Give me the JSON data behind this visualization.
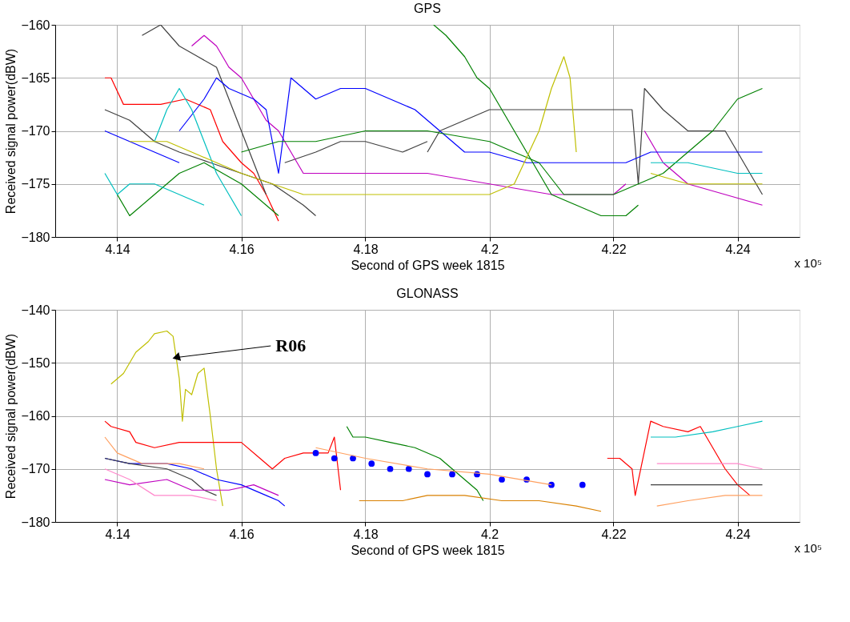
{
  "chart_data": [
    {
      "type": "line",
      "title": "GPS",
      "xlabel": "Second of GPS week 1815",
      "ylabel": "Received signal power(dBW)",
      "xlim": [
        4.13,
        4.25
      ],
      "xticks": [
        4.14,
        4.16,
        4.18,
        4.2,
        4.22,
        4.24
      ],
      "ylim": [
        -180,
        -160
      ],
      "yticks": [
        -180,
        -175,
        -170,
        -165,
        -160
      ],
      "grid": true,
      "annotations": [
        "x 10⁵"
      ],
      "series": [
        {
          "color": "#ff0000",
          "x": [
            4.138,
            4.139,
            4.141,
            4.147,
            4.151,
            4.155,
            4.157,
            4.16,
            4.162,
            4.164,
            4.166
          ],
          "values": [
            -165,
            -165,
            -167.5,
            -167.5,
            -167,
            -168,
            -171,
            -173,
            -174,
            -176,
            -178.5
          ]
        },
        {
          "color": "#404040",
          "x": [
            4.144,
            4.147,
            4.15,
            4.153,
            4.156,
            4.158,
            4.16,
            4.162,
            4.164
          ],
          "values": [
            -161,
            -160,
            -162,
            -163,
            -164,
            -167,
            -170,
            -173,
            -176
          ]
        },
        {
          "color": "#404040",
          "x": [
            4.138,
            4.142,
            4.146,
            4.15,
            4.155,
            4.16,
            4.165,
            4.17,
            4.172
          ],
          "values": [
            -168,
            -169,
            -171,
            -172,
            -173,
            -174,
            -175,
            -177,
            -178
          ]
        },
        {
          "color": "#404040",
          "x": [
            4.167,
            4.172,
            4.176,
            4.18,
            4.186,
            4.19
          ],
          "values": [
            -173,
            -172,
            -171,
            -171,
            -172,
            -171
          ]
        },
        {
          "color": "#404040",
          "x": [
            4.19,
            4.192,
            4.196,
            4.2,
            4.204,
            4.21,
            4.215,
            4.223,
            4.224,
            4.225,
            4.228,
            4.232,
            4.238,
            4.24,
            4.244
          ],
          "values": [
            -172,
            -170,
            -169,
            -168,
            -168,
            -168,
            -168,
            -168,
            -175,
            -166,
            -168,
            -170,
            -170,
            -172,
            -176
          ]
        },
        {
          "color": "#bf00bf",
          "x": [
            4.152,
            4.154,
            4.156,
            4.158,
            4.16,
            4.162,
            4.164,
            4.166,
            4.168,
            4.17,
            4.18,
            4.19,
            4.2,
            4.21,
            4.22,
            4.222
          ],
          "values": [
            -162,
            -161,
            -162,
            -164,
            -165,
            -167,
            -169,
            -170,
            -172,
            -174,
            -174,
            -174,
            -175,
            -176,
            -176,
            -175
          ]
        },
        {
          "color": "#bf00bf",
          "x": [
            4.225,
            4.228,
            4.232,
            4.238,
            4.244
          ],
          "values": [
            -170,
            -173,
            -175,
            -176,
            -177
          ]
        },
        {
          "color": "#0000ff",
          "x": [
            4.15,
            4.154,
            4.156,
            4.158,
            4.162,
            4.164,
            4.166,
            4.168,
            4.17,
            4.172,
            4.176,
            4.18,
            4.184,
            4.188,
            4.192,
            4.196,
            4.2,
            4.206,
            4.214,
            4.222,
            4.226,
            4.24,
            4.244
          ],
          "values": [
            -170,
            -167,
            -165,
            -166,
            -167,
            -168,
            -174,
            -165,
            -166,
            -167,
            -166,
            -166,
            -167,
            -168,
            -170,
            -172,
            -172,
            -173,
            -173,
            -173,
            -172,
            -172,
            -172
          ]
        },
        {
          "color": "#0000ff",
          "x": [
            4.138,
            4.142,
            4.146,
            4.15
          ],
          "values": [
            -170,
            -171,
            -172,
            -173
          ]
        },
        {
          "color": "#008000",
          "x": [
            4.191,
            4.193,
            4.196,
            4.198,
            4.2,
            4.202,
            4.204,
            4.206,
            4.208,
            4.21,
            4.214,
            4.218,
            4.222,
            4.224
          ],
          "values": [
            -160,
            -161,
            -163,
            -165,
            -166,
            -168,
            -170,
            -172,
            -174,
            -176,
            -177,
            -178,
            -178,
            -177
          ]
        },
        {
          "color": "#008000",
          "x": [
            4.16,
            4.166,
            4.172,
            4.18,
            4.19,
            4.2,
            4.204,
            4.208,
            4.212,
            4.22,
            4.228,
            4.232,
            4.236,
            4.24,
            4.244
          ],
          "values": [
            -172,
            -171,
            -171,
            -170,
            -170,
            -171,
            -172,
            -173,
            -176,
            -176,
            -174,
            -172,
            -170,
            -167,
            -166
          ]
        },
        {
          "color": "#008000",
          "x": [
            4.14,
            4.142,
            4.146,
            4.15,
            4.154,
            4.16,
            4.164,
            4.166
          ],
          "values": [
            -176,
            -178,
            -176,
            -174,
            -173,
            -175,
            -177,
            -178
          ]
        },
        {
          "color": "#00bfbf",
          "x": [
            4.146,
            4.148,
            4.15,
            4.152,
            4.154,
            4.156,
            4.158,
            4.16
          ],
          "values": [
            -171,
            -168,
            -166,
            -168,
            -171,
            -174,
            -176,
            -178
          ]
        },
        {
          "color": "#00bfbf",
          "x": [
            4.138,
            4.14,
            4.142,
            4.146,
            4.15,
            4.154
          ],
          "values": [
            -174,
            -176,
            -175,
            -175,
            -176,
            -177
          ]
        },
        {
          "color": "#00bfbf",
          "x": [
            4.226,
            4.232,
            4.24,
            4.244
          ],
          "values": [
            -173,
            -173,
            -174,
            -174
          ]
        },
        {
          "color": "#bfbf00",
          "x": [
            4.142,
            4.148,
            4.152,
            4.16,
            4.17,
            4.18,
            4.19,
            4.2,
            4.204,
            4.208,
            4.21,
            4.212,
            4.213,
            4.214
          ],
          "values": [
            -171,
            -171,
            -172,
            -174,
            -176,
            -176,
            -176,
            -176,
            -175,
            -170,
            -166,
            -163,
            -165,
            -172
          ]
        },
        {
          "color": "#bfbf00",
          "x": [
            4.226,
            4.232,
            4.238,
            4.244
          ],
          "values": [
            -174,
            -175,
            -175,
            -175
          ]
        }
      ]
    },
    {
      "type": "line",
      "title": "GLONASS",
      "xlabel": "Second of GPS week 1815",
      "ylabel": "Received signal power(dBW)",
      "xlim": [
        4.13,
        4.25
      ],
      "xticks": [
        4.14,
        4.16,
        4.18,
        4.2,
        4.22,
        4.24
      ],
      "ylim": [
        -180,
        -140
      ],
      "yticks": [
        -180,
        -170,
        -160,
        -150,
        -140
      ],
      "grid": true,
      "annotations": [
        {
          "text": "R06",
          "x": 4.1495,
          "y": -149
        },
        "x 10⁵"
      ],
      "series": [
        {
          "color": "#bfbf00",
          "x": [
            4.139,
            4.141,
            4.143,
            4.145,
            4.146,
            4.148,
            4.149,
            4.15,
            4.1505,
            4.151,
            4.152,
            4.153,
            4.154,
            4.155,
            4.156,
            4.157
          ],
          "values": [
            -154,
            -152,
            -148,
            -146,
            -144.5,
            -144,
            -145,
            -153,
            -161,
            -155,
            -156,
            -152,
            -151,
            -160,
            -170,
            -177
          ]
        },
        {
          "color": "#ff0000",
          "x": [
            4.138,
            4.139,
            4.142,
            4.143,
            4.146,
            4.15,
            4.16,
            4.163,
            4.165,
            4.167,
            4.17,
            4.174,
            4.175,
            4.176
          ],
          "values": [
            -161,
            -162,
            -163,
            -165,
            -166,
            -165,
            -165,
            -168,
            -170,
            -168,
            -167,
            -167,
            -164,
            -174
          ]
        },
        {
          "color": "#ff0000",
          "x": [
            4.219,
            4.221,
            4.223,
            4.2235,
            4.226,
            4.228,
            4.232,
            4.234,
            4.236,
            4.238,
            4.24,
            4.242
          ],
          "values": [
            -168,
            -168,
            -170,
            -175,
            -161,
            -162,
            -163,
            -162,
            -166,
            -170,
            -173,
            -175
          ]
        },
        {
          "color": "#00bfbf",
          "x": [
            4.226,
            4.23,
            4.236,
            4.24,
            4.244
          ],
          "values": [
            -164,
            -164,
            -163,
            -162,
            -161
          ]
        },
        {
          "color": "#ff88cc",
          "x": [
            4.227,
            4.232,
            4.24,
            4.244
          ],
          "values": [
            -169,
            -169,
            -169,
            -170
          ]
        },
        {
          "color": "#404040",
          "x": [
            4.226,
            4.234,
            4.244
          ],
          "values": [
            -173,
            -173,
            -173
          ]
        },
        {
          "color": "#ffa060",
          "x": [
            4.227,
            4.232,
            4.238,
            4.244
          ],
          "values": [
            -177,
            -176,
            -175,
            -175
          ]
        },
        {
          "color": "#008000",
          "x": [
            4.177,
            4.178,
            4.18,
            4.184,
            4.188,
            4.192,
            4.194,
            4.196,
            4.198,
            4.199
          ],
          "values": [
            -162,
            -164,
            -164,
            -165,
            -166,
            -168,
            -170,
            -172,
            -174,
            -176
          ]
        },
        {
          "color": "#d98000",
          "x": [
            4.179,
            4.186,
            4.19,
            4.196,
            4.202,
            4.208,
            4.214,
            4.218
          ],
          "values": [
            -176,
            -176,
            -175,
            -175,
            -176,
            -176,
            -177,
            -178
          ]
        },
        {
          "color": "#0000ff",
          "x": [
            4.138,
            4.142,
            4.148,
            4.152,
            4.156,
            4.16,
            4.164,
            4.166,
            4.167
          ],
          "values": [
            -168,
            -169,
            -169,
            -170,
            -172,
            -173,
            -175,
            -176,
            -177
          ]
        },
        {
          "type": "scatter",
          "marker": "circle",
          "color": "#0000ff",
          "x": [
            4.172,
            4.175,
            4.178,
            4.181,
            4.184,
            4.187,
            4.19,
            4.194,
            4.198,
            4.202,
            4.206,
            4.21,
            4.215
          ],
          "values": [
            -167,
            -168,
            -168,
            -169,
            -170,
            -170,
            -171,
            -171,
            -171,
            -172,
            -172,
            -173,
            -173
          ]
        },
        {
          "color": "#ffa060",
          "x": [
            4.138,
            4.14,
            4.144,
            4.15,
            4.154
          ],
          "values": [
            -164,
            -167,
            -169,
            -169,
            -170
          ]
        },
        {
          "color": "#ffa060",
          "x": [
            4.172,
            4.18,
            4.19,
            4.2,
            4.21
          ],
          "values": [
            -166,
            -168,
            -170,
            -171,
            -173
          ]
        },
        {
          "color": "#404040",
          "x": [
            4.138,
            4.142,
            4.148,
            4.152,
            4.154,
            4.156
          ],
          "values": [
            -168,
            -169,
            -170,
            -172,
            -174,
            -175
          ]
        },
        {
          "color": "#bf00bf",
          "x": [
            4.138,
            4.142,
            4.148,
            4.152,
            4.158,
            4.162,
            4.166
          ],
          "values": [
            -172,
            -173,
            -172,
            -174,
            -174,
            -173,
            -175
          ]
        },
        {
          "color": "#ff88cc",
          "x": [
            4.138,
            4.142,
            4.146,
            4.152,
            4.156
          ],
          "values": [
            -170,
            -172,
            -175,
            -175,
            -176
          ]
        }
      ]
    }
  ]
}
